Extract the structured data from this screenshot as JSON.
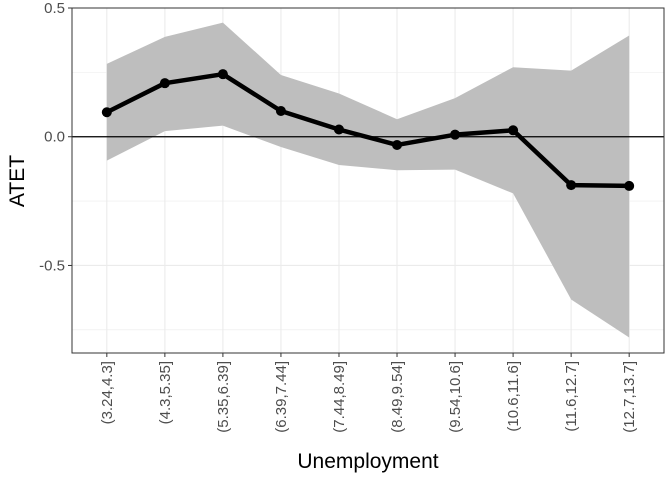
{
  "chart_data": {
    "type": "line",
    "title": "",
    "xlabel": "Unemployment",
    "ylabel": "ATET",
    "categories": [
      "(3.24,4.3]",
      "(4.3,5.35]",
      "(5.35,6.39]",
      "(6.39,7.44]",
      "(7.44,8.49]",
      "(8.49,9.54]",
      "(9.54,10.6]",
      "(10.6,11.6]",
      "(11.6,12.7]",
      "(12.7,13.7]"
    ],
    "series": [
      {
        "values": [
          0.095,
          0.208,
          0.243,
          0.1,
          0.028,
          -0.032,
          0.008,
          0.025,
          -0.188,
          -0.191
        ],
        "lower": [
          -0.093,
          0.022,
          0.043,
          -0.04,
          -0.11,
          -0.13,
          -0.128,
          -0.22,
          -0.632,
          -0.78
        ],
        "upper": [
          0.283,
          0.388,
          0.443,
          0.24,
          0.168,
          0.068,
          0.15,
          0.27,
          0.257,
          0.393
        ]
      }
    ],
    "ylim": [
      -0.84,
      0.5
    ],
    "yticks": [
      0.5,
      0.0,
      -0.5
    ],
    "ytick_labels": [
      "0.5",
      "0.0",
      "-0.5"
    ],
    "reference_line": 0,
    "grid": true,
    "colors": {
      "line": "#000000",
      "band": "#bebebe",
      "grid": "#ebebeb",
      "reference": "#000000"
    }
  }
}
